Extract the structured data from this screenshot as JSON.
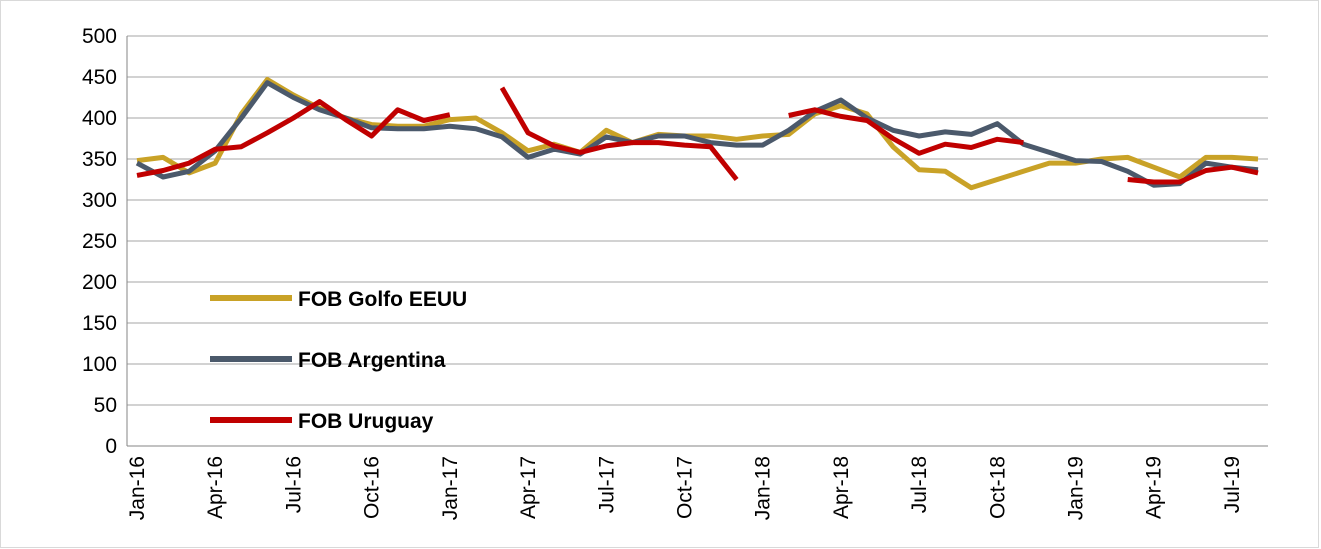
{
  "chart_data": {
    "type": "line",
    "categories": [
      "Jan-16",
      null,
      null,
      "Apr-16",
      null,
      null,
      "Jul-16",
      null,
      null,
      "Oct-16",
      null,
      null,
      "Jan-17",
      null,
      null,
      "Apr-17",
      null,
      null,
      "Jul-17",
      null,
      null,
      "Oct-17",
      null,
      null,
      "Jan-18",
      null,
      null,
      "Apr-18",
      null,
      null,
      "Jul-18",
      null,
      null,
      "Oct-18",
      null,
      null,
      "Jan-19",
      null,
      null,
      "Apr-19",
      null,
      null,
      "Jul-19",
      null
    ],
    "series": [
      {
        "name": "FOB Golfo EEUU",
        "color": "#c9a227",
        "values": [
          348,
          352,
          333,
          345,
          405,
          447,
          428,
          412,
          400,
          392,
          390,
          390,
          398,
          400,
          382,
          360,
          368,
          358,
          385,
          370,
          380,
          378,
          378,
          374,
          378,
          380,
          405,
          415,
          405,
          365,
          337,
          335,
          315,
          325,
          335,
          345,
          345,
          350,
          352,
          340,
          328,
          352,
          352,
          350
        ]
      },
      {
        "name": "FOB Argentina",
        "color": "#4b596b",
        "values": [
          345,
          328,
          335,
          360,
          400,
          443,
          425,
          410,
          400,
          388,
          387,
          387,
          390,
          387,
          377,
          352,
          362,
          356,
          377,
          370,
          378,
          378,
          370,
          367,
          367,
          385,
          408,
          422,
          400,
          385,
          378,
          383,
          380,
          393,
          368,
          358,
          348,
          347,
          335,
          318,
          320,
          345,
          340,
          337
        ]
      },
      {
        "name": "FOB Uruguay",
        "color": "#c00000",
        "values": [
          330,
          336,
          345,
          362,
          365,
          382,
          400,
          420,
          398,
          378,
          410,
          397,
          404,
          null,
          437,
          382,
          366,
          358,
          366,
          370,
          370,
          367,
          365,
          325,
          null,
          403,
          410,
          402,
          397,
          375,
          357,
          368,
          364,
          374,
          370,
          null,
          null,
          null,
          325,
          322,
          322,
          336,
          340,
          333
        ]
      }
    ],
    "ylim": [
      0,
      500
    ],
    "yticks": [
      0,
      50,
      100,
      150,
      200,
      250,
      300,
      350,
      400,
      450,
      500
    ],
    "grid": true
  }
}
